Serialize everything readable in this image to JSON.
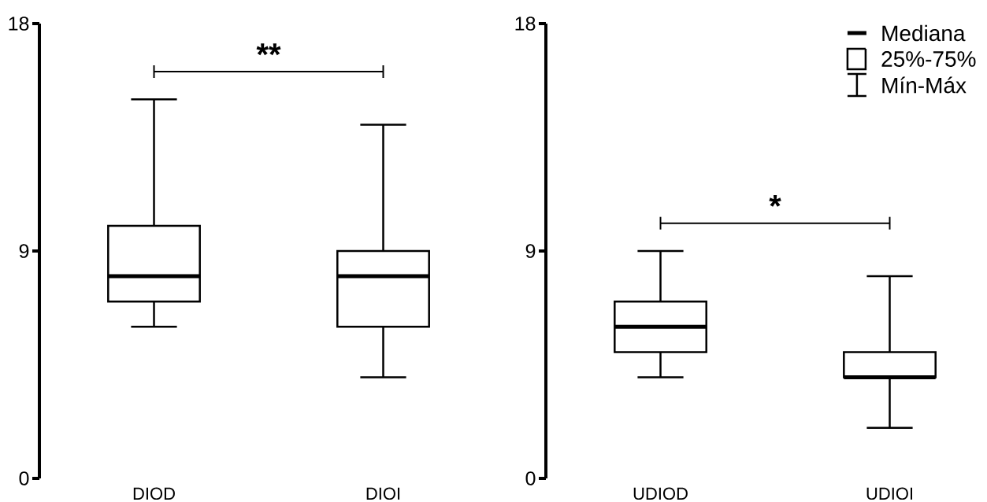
{
  "chart_data": [
    {
      "type": "box",
      "categories": [
        "DIOD",
        "DIOI"
      ],
      "boxes": [
        {
          "low": 6,
          "q1": 7,
          "median": 8,
          "q3": 10,
          "high": 15
        },
        {
          "low": 4,
          "q1": 6,
          "median": 8,
          "q3": 9,
          "high": 14
        }
      ],
      "ylim": [
        0,
        18
      ],
      "yticks": [
        0,
        9,
        18
      ],
      "annotations": [
        "**"
      ]
    },
    {
      "type": "box",
      "categories": [
        "UDIOD",
        "UDIOI"
      ],
      "boxes": [
        {
          "low": 4,
          "q1": 5,
          "median": 6,
          "q3": 7,
          "high": 9
        },
        {
          "low": 2,
          "q1": 4,
          "median": 4,
          "q3": 5,
          "high": 8
        }
      ],
      "ylim": [
        0,
        18
      ],
      "yticks": [
        0,
        9,
        18
      ],
      "annotations": [
        "*",
        "Mediana",
        "25%-75%",
        "Mín-Máx"
      ]
    }
  ]
}
